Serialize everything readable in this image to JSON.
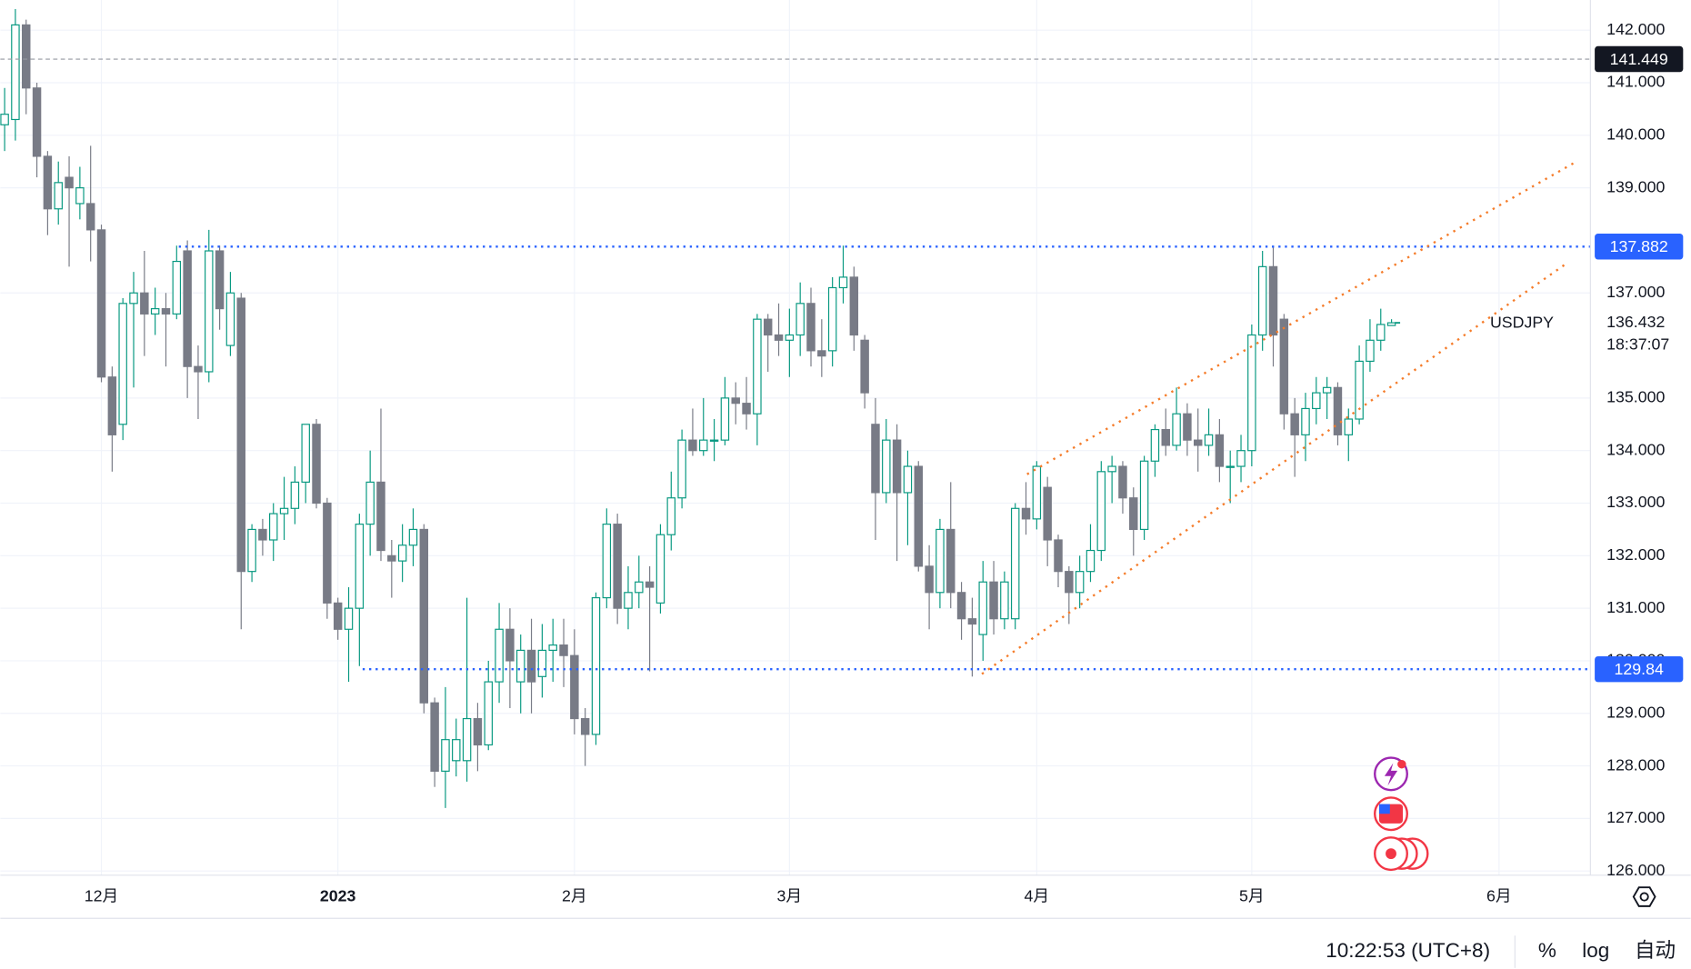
{
  "chart_data": {
    "type": "candlestick",
    "symbol": "USDJPY",
    "open": [
      140.2,
      140.3,
      142.1,
      140.9,
      139.6,
      138.6,
      139.2,
      138.7,
      138.7,
      138.2,
      135.4,
      134.5,
      136.8,
      137.0,
      136.6,
      136.7,
      136.6,
      137.8,
      135.6,
      135.5,
      137.8,
      136.0,
      136.9,
      131.7,
      132.5,
      132.3,
      132.8,
      132.9,
      133.4,
      134.5,
      133.0,
      131.1,
      130.6,
      131.0,
      132.6,
      133.4,
      132.0,
      131.9,
      132.2,
      132.5,
      129.2,
      127.9,
      128.1,
      128.1,
      128.9,
      128.4,
      129.6,
      130.6,
      129.6,
      130.2,
      129.7,
      130.2,
      130.3,
      130.1,
      128.9,
      128.6,
      131.2,
      132.6,
      131.0,
      131.3,
      131.5,
      131.1,
      132.4,
      133.1,
      134.2,
      134.0,
      134.2,
      134.2,
      135.0,
      134.9,
      134.7,
      136.5,
      136.2,
      136.1,
      136.2,
      136.8,
      135.9,
      135.9,
      137.1,
      137.3,
      136.1,
      134.5,
      133.2,
      134.2,
      133.2,
      133.7,
      131.8,
      131.3,
      132.5,
      131.3,
      130.8,
      130.5,
      131.5,
      130.8,
      130.8,
      132.9,
      132.7,
      133.3,
      132.3,
      131.7,
      131.3,
      131.7,
      132.1,
      133.6,
      133.7,
      133.1,
      132.5,
      133.8,
      134.4,
      134.1,
      134.7,
      134.2,
      134.1,
      134.3,
      133.7,
      133.7,
      134.0,
      136.2,
      137.5,
      136.5,
      134.7,
      134.3,
      134.8,
      135.1,
      135.2,
      134.3,
      134.6,
      135.7,
      136.1,
      136.38
    ],
    "high": [
      140.9,
      142.4,
      142.2,
      141.0,
      139.7,
      139.5,
      139.6,
      139.4,
      139.8,
      138.3,
      135.6,
      136.9,
      137.4,
      137.8,
      137.1,
      137.0,
      137.9,
      138.0,
      136.0,
      138.2,
      137.9,
      137.4,
      137.0,
      132.6,
      132.7,
      133.0,
      133.5,
      133.7,
      134.5,
      134.6,
      133.1,
      131.2,
      131.4,
      132.8,
      134.0,
      134.8,
      132.3,
      132.6,
      132.9,
      132.6,
      129.3,
      129.5,
      128.9,
      131.2,
      129.2,
      130.0,
      131.1,
      131.0,
      130.5,
      130.8,
      130.7,
      130.8,
      130.8,
      130.6,
      129.1,
      131.3,
      132.9,
      132.8,
      131.8,
      132.0,
      131.8,
      132.6,
      133.6,
      134.4,
      134.8,
      135.0,
      134.6,
      135.4,
      135.3,
      135.4,
      136.6,
      136.6,
      136.8,
      136.7,
      137.2,
      137.1,
      136.5,
      137.3,
      137.9,
      137.5,
      136.2,
      135.0,
      134.6,
      134.5,
      134.0,
      133.8,
      132.2,
      132.7,
      133.4,
      131.5,
      131.2,
      131.9,
      131.9,
      131.7,
      133.0,
      133.4,
      133.8,
      133.5,
      132.4,
      131.8,
      132.0,
      132.6,
      133.8,
      133.9,
      133.8,
      133.3,
      133.9,
      134.5,
      134.8,
      135.2,
      134.9,
      134.8,
      134.8,
      134.6,
      134.0,
      134.3,
      136.4,
      137.8,
      137.9,
      136.6,
      135.0,
      135.1,
      135.4,
      135.4,
      135.3,
      134.8,
      136.0,
      136.5,
      136.7,
      136.5
    ],
    "low": [
      139.7,
      139.9,
      140.4,
      139.2,
      138.1,
      138.3,
      137.5,
      138.4,
      137.6,
      135.3,
      133.6,
      134.2,
      135.2,
      135.8,
      136.2,
      135.6,
      136.5,
      135.0,
      134.6,
      135.3,
      136.3,
      135.8,
      130.6,
      131.5,
      132.0,
      131.9,
      132.3,
      132.6,
      133.0,
      132.9,
      130.8,
      130.4,
      129.6,
      129.9,
      132.0,
      131.9,
      131.2,
      131.5,
      131.8,
      129.0,
      127.6,
      127.2,
      127.8,
      127.7,
      127.9,
      128.3,
      129.2,
      129.1,
      129.0,
      129.0,
      129.3,
      129.6,
      129.5,
      128.6,
      128.0,
      128.4,
      131.0,
      130.7,
      130.6,
      131.0,
      129.8,
      130.9,
      132.1,
      132.9,
      133.9,
      133.9,
      133.8,
      134.1,
      134.5,
      134.4,
      134.1,
      135.5,
      135.8,
      135.4,
      135.8,
      135.6,
      135.4,
      135.6,
      136.8,
      135.9,
      134.8,
      132.3,
      133.0,
      131.9,
      132.2,
      131.7,
      130.6,
      131.0,
      131.0,
      130.4,
      129.7,
      130.0,
      130.5,
      130.6,
      130.6,
      132.4,
      132.5,
      131.8,
      131.4,
      130.7,
      131.0,
      131.5,
      131.9,
      133.0,
      132.8,
      132.0,
      132.3,
      133.5,
      133.9,
      134.0,
      133.9,
      133.6,
      133.9,
      133.4,
      133.0,
      133.4,
      133.7,
      135.9,
      135.6,
      134.4,
      133.5,
      133.8,
      134.5,
      134.6,
      134.1,
      133.8,
      134.5,
      135.5,
      135.9,
      136.38
    ],
    "close": [
      140.4,
      142.1,
      140.9,
      139.6,
      138.6,
      139.1,
      139.0,
      139.0,
      138.2,
      135.4,
      134.3,
      136.8,
      137.0,
      136.6,
      136.7,
      136.6,
      137.6,
      135.6,
      135.5,
      137.8,
      136.7,
      137.0,
      131.7,
      132.5,
      132.3,
      132.8,
      132.9,
      133.4,
      134.5,
      133.0,
      131.1,
      130.6,
      131.0,
      132.6,
      133.4,
      132.1,
      131.9,
      132.2,
      132.5,
      129.2,
      127.9,
      128.5,
      128.5,
      128.9,
      128.4,
      129.6,
      130.6,
      130.0,
      130.2,
      129.6,
      130.2,
      130.3,
      130.1,
      128.9,
      128.6,
      131.2,
      132.6,
      131.0,
      131.3,
      131.5,
      131.4,
      132.4,
      133.1,
      134.2,
      134.0,
      134.2,
      134.2,
      135.0,
      134.9,
      134.7,
      136.5,
      136.2,
      136.1,
      136.2,
      136.8,
      135.9,
      135.8,
      137.1,
      137.3,
      136.2,
      135.1,
      133.2,
      134.2,
      133.2,
      133.7,
      131.8,
      131.3,
      132.5,
      131.3,
      130.8,
      130.7,
      131.5,
      130.8,
      131.5,
      132.9,
      132.7,
      133.7,
      132.3,
      131.7,
      131.3,
      131.7,
      132.1,
      133.6,
      133.7,
      133.1,
      132.5,
      133.8,
      134.4,
      134.1,
      134.7,
      134.2,
      134.1,
      134.3,
      133.7,
      133.7,
      134.0,
      136.2,
      137.5,
      136.2,
      134.7,
      134.3,
      134.8,
      135.1,
      135.2,
      134.3,
      134.6,
      135.7,
      136.1,
      136.4,
      136.432
    ],
    "colors": {
      "up": "#089981",
      "down": "#787b86"
    },
    "xlim": [
      -0.4,
      147.5
    ],
    "xticks": [
      {
        "value": 9,
        "label": "12月"
      },
      {
        "value": 31,
        "label": "2023"
      },
      {
        "value": 53,
        "label": "2月"
      },
      {
        "value": 73,
        "label": "3月"
      },
      {
        "value": 96,
        "label": "4月"
      },
      {
        "value": 116,
        "label": "5月"
      },
      {
        "value": 139,
        "label": "6月"
      }
    ],
    "ylim": [
      125.92,
      142.574
    ],
    "yticks": [
      {
        "value": 126,
        "label": "126.000"
      },
      {
        "value": 127,
        "label": "127.000"
      },
      {
        "value": 128,
        "label": "128.000"
      },
      {
        "value": 129,
        "label": "129.000"
      },
      {
        "value": 130,
        "label": "130.000"
      },
      {
        "value": 131,
        "label": "131.000"
      },
      {
        "value": 132,
        "label": "132.000"
      },
      {
        "value": 133,
        "label": "133.000"
      },
      {
        "value": 134,
        "label": "134.000"
      },
      {
        "value": 135,
        "label": "135.000"
      },
      {
        "value": 137,
        "label": "137.000"
      },
      {
        "value": 139,
        "label": "139.000"
      },
      {
        "value": 140,
        "label": "140.000"
      },
      {
        "value": 141,
        "label": "141.000"
      },
      {
        "value": 142,
        "label": "142.000"
      }
    ],
    "grid": true,
    "price_lines": [
      {
        "value": 141.449,
        "start": -0.4,
        "color": "#9598a1",
        "label_color": "#131722",
        "style": "dashed"
      },
      {
        "value": 137.882,
        "start": 16.2,
        "color": "#2962ff",
        "label_color": "#2962ff",
        "style": "dotted"
      },
      {
        "value": 129.84,
        "start": 33.3,
        "color": "#2962ff",
        "label_color": "#2962ff",
        "style": "dotted"
      }
    ],
    "trend_lines": [
      {
        "x": [
          95.1,
          146.2
        ],
        "y": [
          133.55,
          139.5
        ],
        "color": "#f57c2a"
      },
      {
        "x": [
          90.9,
          145.2
        ],
        "y": [
          129.75,
          137.55
        ],
        "color": "#f57c2a"
      }
    ],
    "last_price": 136.432,
    "countdown": "18:37:07",
    "bottom_bar": {
      "time": "10:22:53 (UTC+8)",
      "buttons": [
        "%",
        "log",
        "自动"
      ]
    }
  }
}
